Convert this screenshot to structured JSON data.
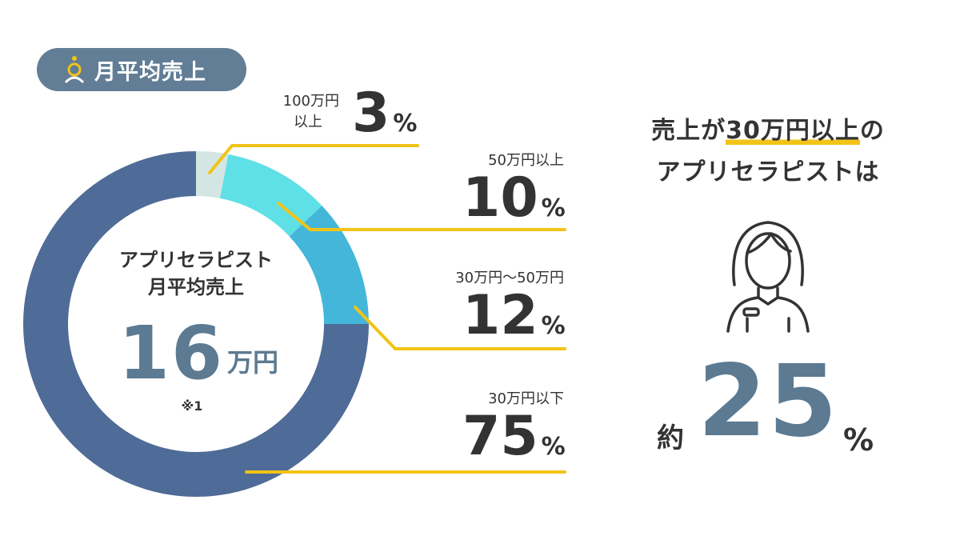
{
  "header": {
    "title": "月平均売上"
  },
  "center": {
    "title_line1": "アプリセラピスト",
    "title_line2": "月平均売上",
    "value": "16",
    "unit": "万円",
    "note": "※1"
  },
  "chart_data": {
    "type": "pie",
    "title": "月平均売上",
    "categories": [
      "100万円以上",
      "50万円以上",
      "30万円〜50万円",
      "30万円以下"
    ],
    "values": [
      3,
      10,
      12,
      75
    ],
    "unit": "%",
    "colors": [
      "#d4e6e4",
      "#5ee0e6",
      "#44b6d9",
      "#4f6b97"
    ],
    "leader_color": "#f2c318"
  },
  "labels": [
    {
      "line1": "100万円",
      "line2": "以上",
      "num": "3",
      "sign": "%"
    },
    {
      "line1": "50万円以上",
      "num": "10",
      "sign": "%"
    },
    {
      "line1": "30万円〜50万円",
      "num": "12",
      "sign": "%"
    },
    {
      "line1": "30万円以下",
      "num": "75",
      "sign": "%"
    }
  ],
  "summary": {
    "line1_a": "売上が",
    "line1_highlight": "30万円以上",
    "line1_b": "の",
    "line2": "アプリセラピストは",
    "approx": "約",
    "value": "25",
    "sign": "%",
    "icon": "female-therapist-icon"
  }
}
